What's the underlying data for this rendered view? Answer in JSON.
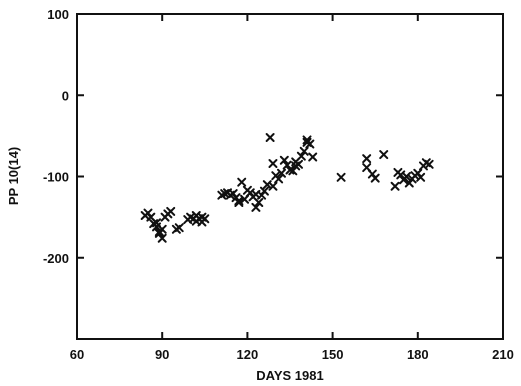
{
  "chart_data": {
    "type": "scatter",
    "title": "",
    "xlabel": "DAYS 1981",
    "ylabel": "PP 10(14)",
    "xlim": [
      60,
      210
    ],
    "ylim": [
      -300,
      100
    ],
    "xticks": [
      60,
      90,
      120,
      150,
      180,
      210
    ],
    "yticks": [
      100,
      0,
      -100,
      -200
    ],
    "xtick_labels": [
      "60",
      "90",
      "120",
      "150",
      "180",
      "210"
    ],
    "ytick_labels": [
      "100",
      "0",
      "-100",
      "-200"
    ],
    "marker": "x",
    "grid": false,
    "series": [
      {
        "points": [
          [
            84,
            -148
          ],
          [
            85,
            -145
          ],
          [
            86,
            -150
          ],
          [
            87,
            -158
          ],
          [
            88,
            -162
          ],
          [
            88,
            -157
          ],
          [
            89,
            -170
          ],
          [
            89,
            -168
          ],
          [
            90,
            -176
          ],
          [
            90,
            -165
          ],
          [
            91,
            -150
          ],
          [
            92,
            -146
          ],
          [
            93,
            -143
          ],
          [
            95,
            -165
          ],
          [
            96,
            -163
          ],
          [
            99,
            -153
          ],
          [
            100,
            -150
          ],
          [
            101,
            -152
          ],
          [
            102,
            -155
          ],
          [
            102,
            -148
          ],
          [
            103,
            -152
          ],
          [
            104,
            -150
          ],
          [
            104,
            -156
          ],
          [
            105,
            -152
          ],
          [
            111,
            -123
          ],
          [
            112,
            -121
          ],
          [
            113,
            -120
          ],
          [
            114,
            -123
          ],
          [
            115,
            -121
          ],
          [
            116,
            -126
          ],
          [
            117,
            -130
          ],
          [
            117,
            -132
          ],
          [
            118,
            -107
          ],
          [
            119,
            -128
          ],
          [
            120,
            -117
          ],
          [
            121,
            -120
          ],
          [
            122,
            -125
          ],
          [
            123,
            -138
          ],
          [
            123,
            -122
          ],
          [
            124,
            -132
          ],
          [
            125,
            -123
          ],
          [
            126,
            -118
          ],
          [
            127,
            -110
          ],
          [
            128,
            -52
          ],
          [
            129,
            -84
          ],
          [
            129,
            -112
          ],
          [
            130,
            -99
          ],
          [
            131,
            -103
          ],
          [
            132,
            -96
          ],
          [
            133,
            -80
          ],
          [
            134,
            -86
          ],
          [
            135,
            -92
          ],
          [
            136,
            -93
          ],
          [
            137,
            -87
          ],
          [
            137,
            -82
          ],
          [
            138,
            -85
          ],
          [
            139,
            -75
          ],
          [
            140,
            -69
          ],
          [
            141,
            -58
          ],
          [
            141,
            -55
          ],
          [
            142,
            -60
          ],
          [
            143,
            -76
          ],
          [
            153,
            -101
          ],
          [
            162,
            -78
          ],
          [
            162,
            -89
          ],
          [
            164,
            -97
          ],
          [
            165,
            -102
          ],
          [
            168,
            -73
          ],
          [
            172,
            -112
          ],
          [
            173,
            -95
          ],
          [
            174,
            -98
          ],
          [
            175,
            -104
          ],
          [
            176,
            -100
          ],
          [
            177,
            -108
          ],
          [
            178,
            -103
          ],
          [
            179,
            -99
          ],
          [
            180,
            -96
          ],
          [
            181,
            -101
          ],
          [
            182,
            -87
          ],
          [
            183,
            -83
          ],
          [
            184,
            -85
          ]
        ]
      }
    ]
  }
}
